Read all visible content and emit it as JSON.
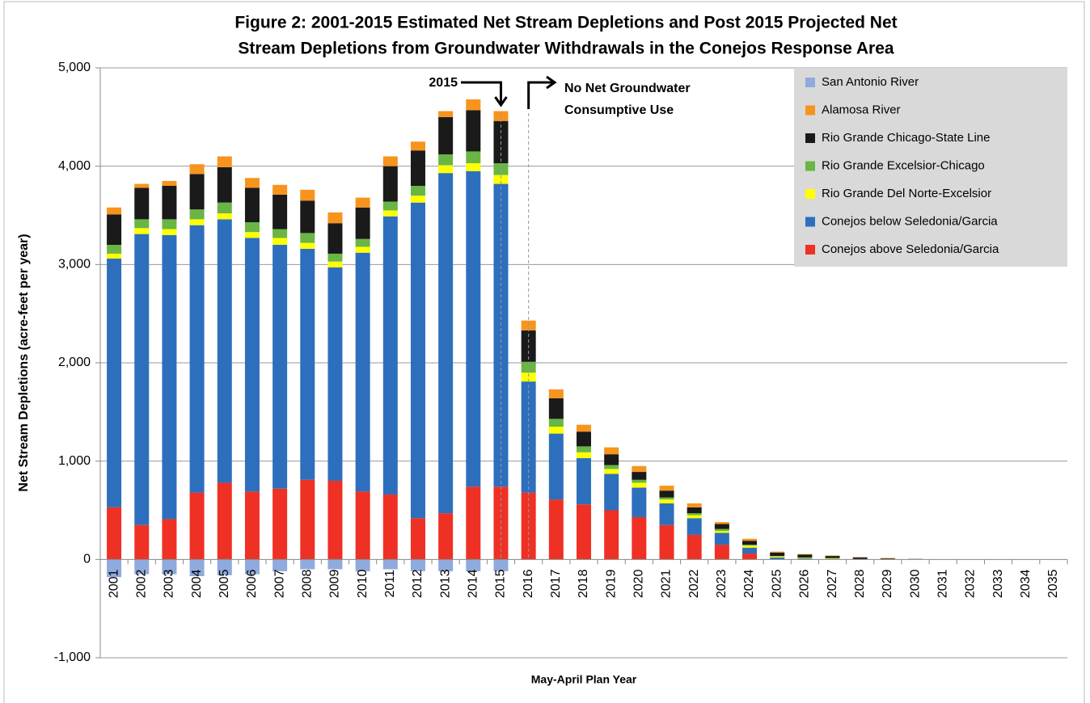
{
  "chart_data": {
    "type": "stacked_bar",
    "title": [
      "Figure 2: 2001-2015 Estimated Net Stream Depletions and Post 2015 Projected Net",
      "Stream Depletions from Groundwater Withdrawals in the Conejos Response Area"
    ],
    "y_label": "Net Stream Depletions (acre-feet per year)",
    "x_label": "May-April Plan Year",
    "annotations": [
      [
        "2015"
      ],
      [
        "No Net Groundwater",
        "Consumptive Use"
      ]
    ],
    "categories": [
      "2001",
      "2002",
      "2003",
      "2004",
      "2005",
      "2006",
      "2007",
      "2008",
      "2009",
      "2010",
      "2011",
      "2012",
      "2013",
      "2014",
      "2015",
      "2016",
      "2017",
      "2018",
      "2019",
      "2020",
      "2021",
      "2022",
      "2023",
      "2024",
      "2025",
      "2026",
      "2027",
      "2028",
      "2029",
      "2030",
      "2031",
      "2032",
      "2033",
      "2034",
      "2035"
    ],
    "series": [
      {
        "name": "Conejos above Seledonia/Garcia",
        "color": "#ee3124",
        "values": [
          530,
          350,
          410,
          680,
          780,
          690,
          720,
          810,
          800,
          690,
          660,
          420,
          470,
          740,
          740,
          680,
          610,
          560,
          500,
          430,
          350,
          250,
          150,
          60,
          0,
          0,
          0,
          0,
          0,
          0,
          0,
          0,
          0,
          0,
          0
        ]
      },
      {
        "name": "Conejos below Seledonia/Garcia",
        "color": "#2e6fbd",
        "values": [
          2530,
          2960,
          2890,
          2720,
          2680,
          2580,
          2480,
          2350,
          2170,
          2430,
          2830,
          3210,
          3460,
          3210,
          3080,
          1130,
          670,
          470,
          370,
          300,
          220,
          170,
          120,
          60,
          20,
          10,
          5,
          5,
          0,
          0,
          0,
          0,
          0,
          0,
          0
        ]
      },
      {
        "name": "Rio Grande Del Norte-Excelsior",
        "color": "#ffff00",
        "values": [
          50,
          60,
          60,
          60,
          60,
          60,
          70,
          60,
          60,
          60,
          60,
          70,
          80,
          80,
          90,
          90,
          70,
          60,
          50,
          50,
          40,
          30,
          20,
          20,
          10,
          5,
          5,
          0,
          0,
          0,
          0,
          0,
          0,
          0,
          0
        ]
      },
      {
        "name": "Rio Grande Excelsior-Chicago",
        "color": "#6ab545",
        "values": [
          90,
          90,
          100,
          100,
          110,
          100,
          90,
          100,
          80,
          80,
          90,
          100,
          110,
          120,
          120,
          110,
          80,
          60,
          40,
          30,
          20,
          20,
          20,
          10,
          5,
          5,
          5,
          0,
          0,
          0,
          0,
          0,
          0,
          0,
          0
        ]
      },
      {
        "name": "Rio Grande Chicago-State Line",
        "color": "#1a1a1a",
        "values": [
          310,
          320,
          340,
          360,
          360,
          350,
          350,
          330,
          310,
          320,
          360,
          360,
          380,
          420,
          430,
          320,
          210,
          150,
          110,
          80,
          70,
          60,
          50,
          40,
          35,
          30,
          20,
          15,
          10,
          5,
          0,
          0,
          0,
          0,
          0
        ]
      },
      {
        "name": "Alamosa River",
        "color": "#f7941d",
        "values": [
          70,
          40,
          50,
          100,
          110,
          100,
          100,
          110,
          110,
          100,
          100,
          90,
          60,
          110,
          100,
          100,
          90,
          70,
          70,
          60,
          50,
          40,
          20,
          20,
          10,
          5,
          5,
          5,
          5,
          0,
          0,
          0,
          0,
          0,
          0
        ]
      },
      {
        "name": "San Antonio River",
        "color": "#8faadc",
        "values": [
          -180,
          -150,
          -150,
          -170,
          -160,
          -150,
          -120,
          -100,
          -100,
          -120,
          -100,
          -120,
          -120,
          -120,
          -120,
          0,
          0,
          0,
          0,
          0,
          0,
          0,
          0,
          0,
          0,
          0,
          0,
          0,
          0,
          0,
          0,
          0,
          0,
          0,
          0
        ]
      }
    ],
    "ylim": [
      -1000,
      5000
    ],
    "yticks": [
      {
        "value": -1000,
        "label": "-1,000"
      },
      0,
      {
        "value": 1000,
        "label": "1,000"
      },
      {
        "value": 2000,
        "label": "2,000"
      },
      {
        "value": 3000,
        "label": "3,000"
      },
      {
        "value": 4000,
        "label": "4,000"
      },
      {
        "value": 5000,
        "label": "5,000"
      }
    ],
    "grid": true,
    "legend": "top-right"
  }
}
